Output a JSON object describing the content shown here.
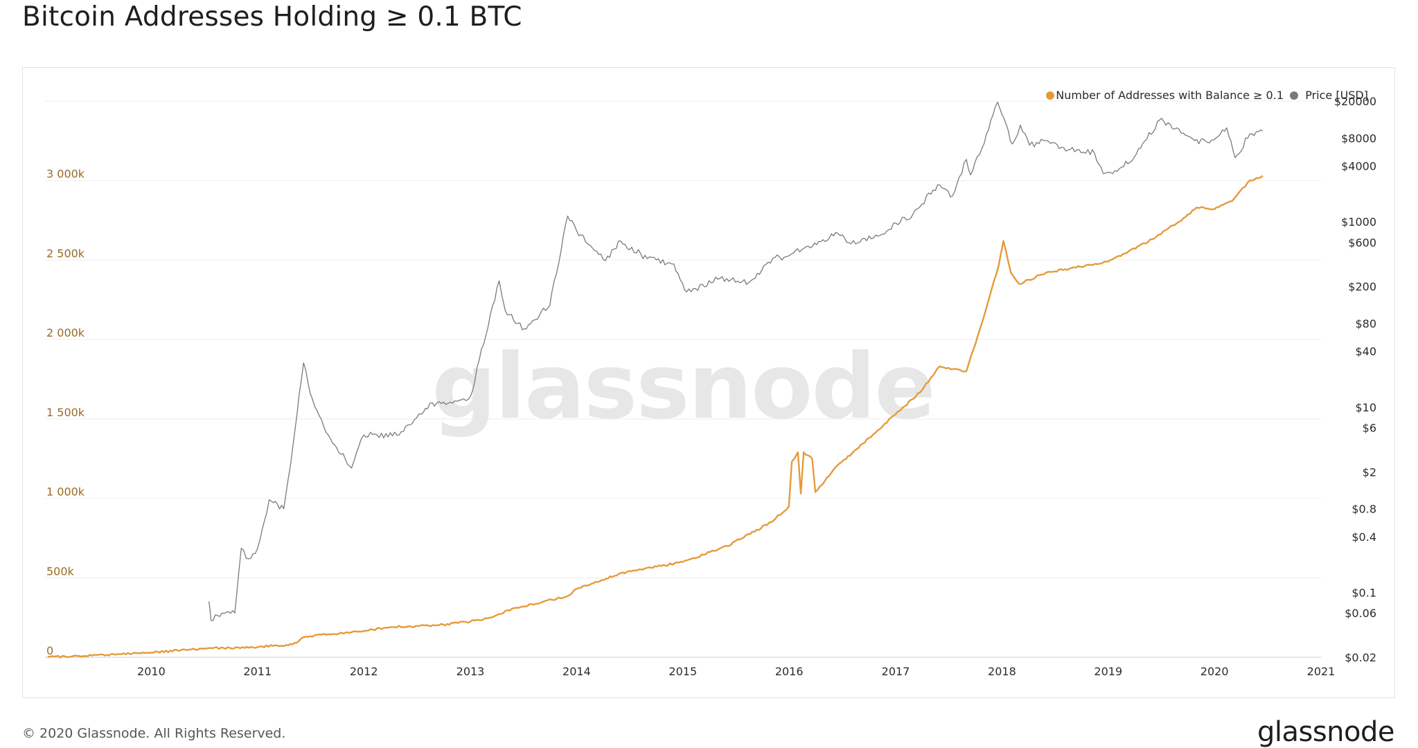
{
  "header": {
    "title": "Bitcoin Addresses Holding ≥ 0.1 BTC"
  },
  "footer": {
    "copyright": "© 2020 Glassnode. All Rights Reserved.",
    "brand": "glassnode"
  },
  "watermark": "glassnode",
  "colors": {
    "addresses": "#E59A3A",
    "price": "#7a7a7a",
    "left_axis_text": "#9a6a25",
    "axis_text": "#2b2b2b",
    "grid": "#eeeeee"
  },
  "chart_data": {
    "type": "line",
    "title": "Bitcoin Addresses Holding ≥ 0.1 BTC",
    "legend": [
      {
        "name": "Number of Addresses with Balance ≥ 0.1",
        "color": "#E59A3A"
      },
      {
        "name": "Price [USD]",
        "color": "#7a7a7a"
      }
    ],
    "legend_position": "top-right",
    "x_range": [
      "2009-01-01",
      "2021-01-01"
    ],
    "x_ticks": [
      "2010",
      "2011",
      "2012",
      "2013",
      "2014",
      "2015",
      "2016",
      "2017",
      "2018",
      "2019",
      "2020",
      "2021"
    ],
    "y_left": {
      "range": [
        0,
        3500000
      ],
      "ticks": [
        0,
        500000,
        1000000,
        1500000,
        2000000,
        2500000,
        3000000
      ],
      "tick_labels": [
        "0",
        "500k",
        "1 000k",
        "1 500k",
        "2 000k",
        "2 500k",
        "3 000k"
      ]
    },
    "y_right": {
      "scale": "log",
      "range": [
        0.02,
        20000
      ],
      "ticks": [
        20000,
        8000,
        4000,
        1000,
        600,
        200,
        80,
        40,
        10,
        6,
        2,
        0.8,
        0.4,
        0.1,
        0.06,
        0.02
      ],
      "tick_labels": [
        "$20000",
        "$8000",
        "$4000",
        "$1000",
        "$600",
        "$200",
        "$80",
        "$40",
        "$10",
        "$6",
        "$2",
        "$0.8",
        "$0.4",
        "$0.1",
        "$0.06",
        "$0.02"
      ]
    },
    "grid": true,
    "series": [
      {
        "name": "Number of Addresses with Balance ≥ 0.1",
        "axis": "left",
        "points": [
          [
            "2009-01-10",
            0
          ],
          [
            "2010-01-01",
            30000
          ],
          [
            "2010-07-01",
            55000
          ],
          [
            "2011-01-01",
            65000
          ],
          [
            "2011-05-01",
            80000
          ],
          [
            "2011-06-15",
            130000
          ],
          [
            "2011-09-01",
            145000
          ],
          [
            "2012-01-01",
            165000
          ],
          [
            "2012-04-01",
            190000
          ],
          [
            "2012-09-01",
            200000
          ],
          [
            "2013-01-01",
            225000
          ],
          [
            "2013-03-01",
            245000
          ],
          [
            "2013-06-01",
            310000
          ],
          [
            "2013-09-01",
            345000
          ],
          [
            "2013-12-01",
            385000
          ],
          [
            "2014-01-01",
            430000
          ],
          [
            "2014-06-01",
            530000
          ],
          [
            "2015-01-01",
            600000
          ],
          [
            "2015-06-01",
            700000
          ],
          [
            "2015-11-01",
            850000
          ],
          [
            "2015-12-31",
            950000
          ],
          [
            "2016-01-10",
            1230000
          ],
          [
            "2016-01-31",
            1290000
          ],
          [
            "2016-02-10",
            1030000
          ],
          [
            "2016-02-20",
            1290000
          ],
          [
            "2016-03-20",
            1250000
          ],
          [
            "2016-03-31",
            1040000
          ],
          [
            "2016-06-01",
            1180000
          ],
          [
            "2016-10-01",
            1380000
          ],
          [
            "2017-01-01",
            1530000
          ],
          [
            "2017-04-01",
            1680000
          ],
          [
            "2017-06-01",
            1830000
          ],
          [
            "2017-09-01",
            1800000
          ],
          [
            "2017-11-01",
            2150000
          ],
          [
            "2017-12-20",
            2460000
          ],
          [
            "2018-01-06",
            2620000
          ],
          [
            "2018-02-01",
            2420000
          ],
          [
            "2018-03-01",
            2350000
          ],
          [
            "2018-06-01",
            2420000
          ],
          [
            "2019-01-01",
            2490000
          ],
          [
            "2019-06-01",
            2630000
          ],
          [
            "2019-09-01",
            2740000
          ],
          [
            "2019-11-01",
            2830000
          ],
          [
            "2020-01-01",
            2820000
          ],
          [
            "2020-03-01",
            2870000
          ],
          [
            "2020-05-01",
            3000000
          ],
          [
            "2020-06-15",
            3030000
          ]
        ]
      },
      {
        "name": "Price [USD]",
        "axis": "right",
        "points": [
          [
            "2010-07-18",
            0.08
          ],
          [
            "2010-07-25",
            0.05
          ],
          [
            "2010-09-01",
            0.06
          ],
          [
            "2010-10-15",
            0.06
          ],
          [
            "2010-11-06",
            0.3
          ],
          [
            "2010-12-01",
            0.23
          ],
          [
            "2011-01-01",
            0.3
          ],
          [
            "2011-02-10",
            1.0
          ],
          [
            "2011-04-01",
            0.8
          ],
          [
            "2011-05-01",
            3.5
          ],
          [
            "2011-06-08",
            30
          ],
          [
            "2011-07-01",
            14
          ],
          [
            "2011-09-01",
            5
          ],
          [
            "2011-11-20",
            2.2
          ],
          [
            "2012-01-01",
            5
          ],
          [
            "2012-05-01",
            5
          ],
          [
            "2012-08-15",
            11
          ],
          [
            "2012-11-01",
            11
          ],
          [
            "2013-01-01",
            13
          ],
          [
            "2013-04-10",
            230
          ],
          [
            "2013-05-01",
            110
          ],
          [
            "2013-07-05",
            70
          ],
          [
            "2013-10-01",
            125
          ],
          [
            "2013-12-01",
            1150
          ],
          [
            "2014-01-01",
            800
          ],
          [
            "2014-04-10",
            380
          ],
          [
            "2014-06-01",
            620
          ],
          [
            "2014-09-01",
            400
          ],
          [
            "2014-12-01",
            350
          ],
          [
            "2015-01-14",
            175
          ],
          [
            "2015-05-01",
            240
          ],
          [
            "2015-08-15",
            220
          ],
          [
            "2015-11-05",
            400
          ],
          [
            "2016-01-01",
            430
          ],
          [
            "2016-06-16",
            750
          ],
          [
            "2016-08-01",
            580
          ],
          [
            "2016-11-01",
            700
          ],
          [
            "2017-01-01",
            970
          ],
          [
            "2017-03-01",
            1200
          ],
          [
            "2017-05-25",
            2500
          ],
          [
            "2017-07-15",
            1900
          ],
          [
            "2017-09-01",
            4700
          ],
          [
            "2017-09-15",
            3200
          ],
          [
            "2017-11-01",
            7000
          ],
          [
            "2017-12-17",
            19500
          ],
          [
            "2018-02-06",
            6900
          ],
          [
            "2018-03-05",
            11000
          ],
          [
            "2018-04-06",
            6700
          ],
          [
            "2018-06-01",
            7500
          ],
          [
            "2018-08-01",
            6300
          ],
          [
            "2018-11-15",
            5500
          ],
          [
            "2018-12-15",
            3300
          ],
          [
            "2019-02-01",
            3500
          ],
          [
            "2019-04-01",
            5000
          ],
          [
            "2019-06-26",
            12500
          ],
          [
            "2019-09-01",
            10000
          ],
          [
            "2019-10-25",
            7500
          ],
          [
            "2019-12-15",
            7100
          ],
          [
            "2020-02-12",
            10300
          ],
          [
            "2020-03-12",
            4900
          ],
          [
            "2020-05-01",
            8800
          ],
          [
            "2020-06-15",
            9500
          ]
        ]
      }
    ]
  }
}
